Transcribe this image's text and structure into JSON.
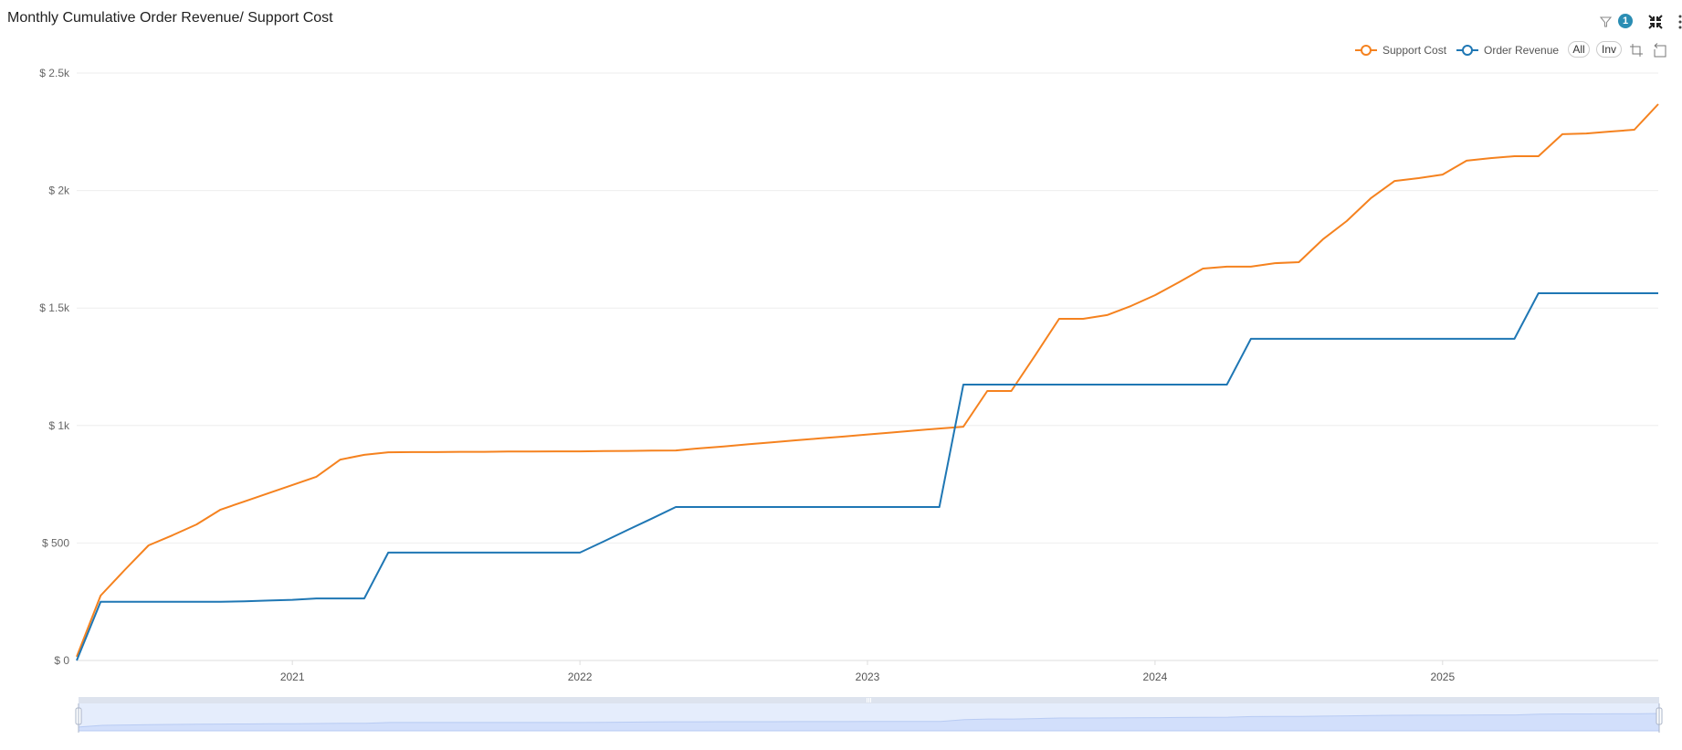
{
  "header": {
    "title": "Monthly Cumulative Order Revenue/ Support Cost",
    "filter_badge_count": "1"
  },
  "toolbar": {
    "filter_icon": "filter-icon",
    "collapse_icon": "collapse-arrows-icon",
    "more_icon": "kebab-menu-icon",
    "all_label": "All",
    "inv_label": "Inv",
    "crop_icon": "data-zoom-icon",
    "undo_icon": "zoom-reset-icon"
  },
  "legend": [
    {
      "label": "Support Cost",
      "color": "#f5821f"
    },
    {
      "label": "Order Revenue",
      "color": "#1f77b4"
    }
  ],
  "chart_data": {
    "type": "line",
    "title": "Monthly Cumulative Order Revenue/ Support Cost",
    "xlabel": "",
    "ylabel": "",
    "x_start": "2020-04",
    "x_end": "2025-10",
    "x_ticks": [
      "2021",
      "2022",
      "2023",
      "2024",
      "2025"
    ],
    "y_ticks": [
      "$ 0",
      "$ 500",
      "$ 1k",
      "$ 1.5k",
      "$ 2k",
      "$ 2.5k"
    ],
    "ylim": [
      0,
      2500
    ],
    "grid": true,
    "legend_position": "top-right",
    "x": [
      "2020-04",
      "2020-05",
      "2020-06",
      "2020-07",
      "2020-08",
      "2020-09",
      "2020-10",
      "2020-11",
      "2020-12",
      "2021-01",
      "2021-02",
      "2021-03",
      "2021-04",
      "2021-05",
      "2021-06",
      "2021-07",
      "2021-08",
      "2021-09",
      "2021-10",
      "2021-11",
      "2021-12",
      "2022-01",
      "2022-02",
      "2022-03",
      "2022-04",
      "2022-05",
      "2022-06",
      "2022-07",
      "2022-08",
      "2022-09",
      "2022-10",
      "2022-11",
      "2022-12",
      "2023-01",
      "2023-02",
      "2023-03",
      "2023-04",
      "2023-05",
      "2023-06",
      "2023-07",
      "2023-08",
      "2023-09",
      "2023-10",
      "2023-11",
      "2023-12",
      "2024-01",
      "2024-02",
      "2024-03",
      "2024-04",
      "2024-05",
      "2024-06",
      "2024-07",
      "2024-08",
      "2024-09",
      "2024-10",
      "2024-11",
      "2024-12",
      "2025-01",
      "2025-02",
      "2025-03",
      "2025-04",
      "2025-05",
      "2025-06",
      "2025-07",
      "2025-08",
      "2025-09",
      "2025-10"
    ],
    "series": [
      {
        "name": "Support Cost",
        "color": "#f5821f",
        "values": [
          16,
          276,
          385,
          490,
          533,
          579,
          642,
          677,
          712,
          747,
          782,
          855,
          875,
          886,
          887,
          887,
          888,
          888,
          889,
          889,
          890,
          890,
          891,
          892,
          893,
          894,
          903,
          911,
          920,
          928,
          937,
          945,
          953,
          962,
          970,
          979,
          987,
          995,
          1147,
          1147,
          1299,
          1454,
          1454,
          1470,
          1509,
          1555,
          1610,
          1668,
          1676,
          1676,
          1691,
          1695,
          1792,
          1870,
          1967,
          2041,
          2053,
          2068,
          2127,
          2138,
          2146,
          2146,
          2240,
          2243,
          2251,
          2259,
          2368
        ]
      },
      {
        "name": "Order Revenue",
        "color": "#1f77b4",
        "values": [
          0,
          250,
          250,
          250,
          250,
          250,
          250,
          252,
          255,
          258,
          264,
          264,
          264,
          459,
          459,
          459,
          459,
          459,
          459,
          459,
          459,
          459,
          507,
          556,
          604,
          653,
          653,
          653,
          653,
          653,
          653,
          653,
          653,
          653,
          653,
          653,
          653,
          1174,
          1174,
          1174,
          1174,
          1174,
          1174,
          1174,
          1174,
          1174,
          1174,
          1174,
          1174,
          1369,
          1369,
          1369,
          1369,
          1369,
          1369,
          1369,
          1369,
          1369,
          1369,
          1369,
          1369,
          1563,
          1563,
          1563,
          1563,
          1563,
          1563
        ]
      }
    ]
  }
}
